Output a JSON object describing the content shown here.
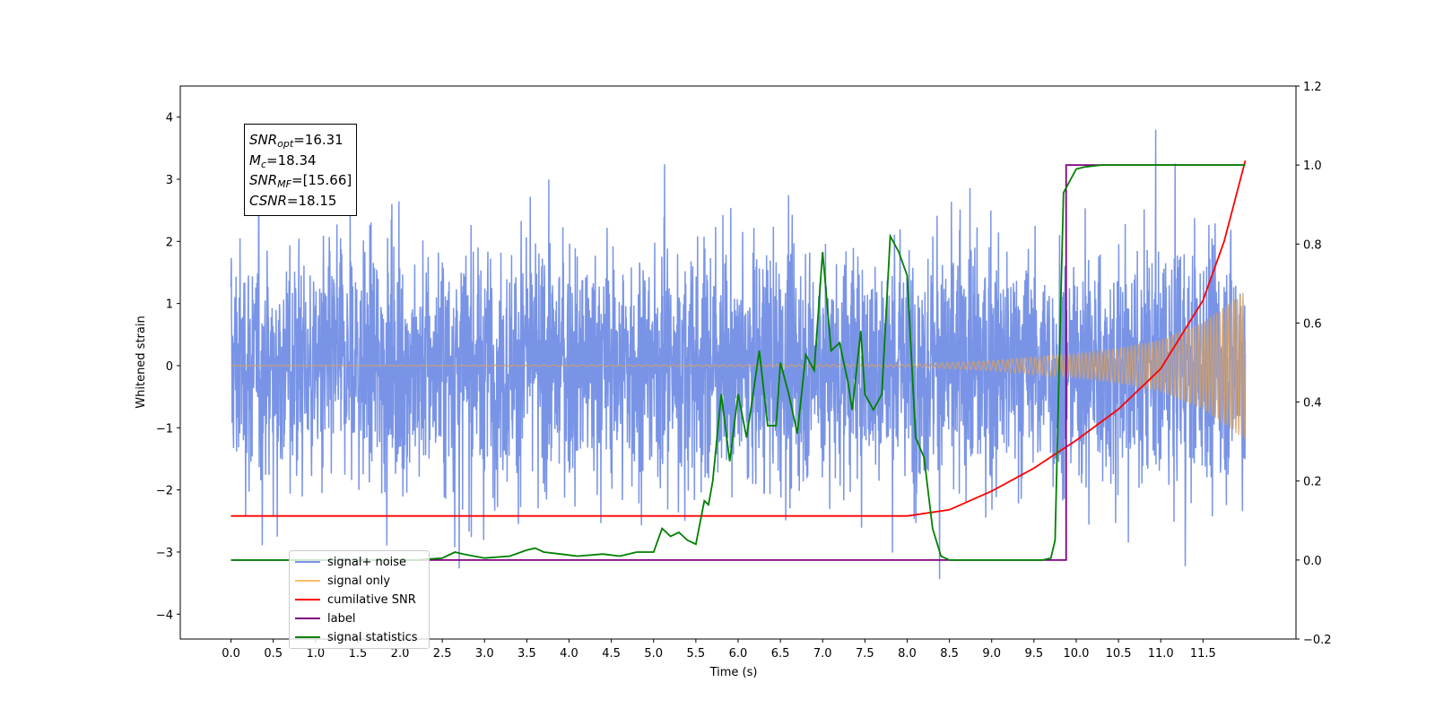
{
  "chart_data": {
    "type": "line",
    "xlabel": "Time (s)",
    "ylabel": "Whitened strain",
    "xlim": [
      -0.6,
      12.6
    ],
    "ylim": [
      -4.4,
      4.5
    ],
    "y2lim": [
      -0.2,
      1.2
    ],
    "x_ticks": [
      "0.0",
      "0.5",
      "1.0",
      "1.5",
      "2.0",
      "2.5",
      "3.0",
      "3.5",
      "4.0",
      "4.5",
      "5.0",
      "5.5",
      "6.0",
      "6.5",
      "7.0",
      "7.5",
      "8.0",
      "8.5",
      "9.0",
      "9.5",
      "10.0",
      "10.5",
      "11.0",
      "11.5"
    ],
    "y_ticks": [
      "4",
      "3",
      "2",
      "1",
      "0",
      "−1",
      "−2",
      "−3",
      "−4"
    ],
    "y2_ticks": [
      "1.2",
      "1.0",
      "0.8",
      "0.6",
      "0.4",
      "0.2",
      "0.0",
      "−0.2"
    ],
    "annotation": {
      "snr_opt": "16.31",
      "mc": "18.34",
      "snr_mf": "[15.66]",
      "csnr": "18.15"
    },
    "legend": {
      "placement": "lower-left",
      "entries": [
        {
          "label": "signal+ noise",
          "color": "#7994e6"
        },
        {
          "label": "signal only",
          "color": "#ffbf66"
        },
        {
          "label": "cumilative SNR",
          "color": "#ff0000"
        },
        {
          "label": "label",
          "color": "#800080"
        },
        {
          "label": "signal statistics",
          "color": "#008000"
        }
      ]
    },
    "series": [
      {
        "name": "signal+ noise",
        "axis": "left",
        "description_values": {
          "t_start": 0.0,
          "t_end": 12.0,
          "envelope_std": 1.0
        }
      },
      {
        "name": "signal only",
        "axis": "left",
        "envelope": {
          "t": [
            0.0,
            8.0,
            9.0,
            10.0,
            10.5,
            11.0,
            11.5,
            12.0
          ],
          "amplitude": [
            0.0,
            0.02,
            0.08,
            0.2,
            0.28,
            0.42,
            0.7,
            1.2
          ]
        }
      },
      {
        "name": "cumilative SNR",
        "axis": "left",
        "t": [
          0.0,
          8.0,
          8.5,
          9.0,
          9.5,
          10.0,
          10.5,
          11.0,
          11.5,
          11.75,
          12.0
        ],
        "values": [
          -2.42,
          -2.42,
          -2.32,
          -2.02,
          -1.65,
          -1.2,
          -0.7,
          -0.05,
          1.05,
          2.0,
          3.3
        ]
      },
      {
        "name": "label",
        "axis": "right",
        "t": [
          0.0,
          9.82,
          9.82,
          9.88,
          9.88,
          12.0
        ],
        "values": [
          0.0,
          0.0,
          0.0,
          0.0,
          1.0,
          1.0
        ]
      },
      {
        "name": "signal statistics",
        "axis": "right",
        "t": [
          0.0,
          2.2,
          2.5,
          2.65,
          2.75,
          3.0,
          3.3,
          3.5,
          3.6,
          3.7,
          3.9,
          4.1,
          4.4,
          4.6,
          4.8,
          5.0,
          5.1,
          5.2,
          5.3,
          5.4,
          5.5,
          5.6,
          5.65,
          5.7,
          5.8,
          5.9,
          6.0,
          6.1,
          6.15,
          6.25,
          6.35,
          6.45,
          6.5,
          6.6,
          6.7,
          6.8,
          6.9,
          7.0,
          7.1,
          7.2,
          7.3,
          7.35,
          7.45,
          7.5,
          7.6,
          7.7,
          7.8,
          7.9,
          8.0,
          8.1,
          8.2,
          8.3,
          8.4,
          8.5,
          9.0,
          9.6,
          9.7,
          9.75,
          9.8,
          9.85,
          9.9,
          10.0,
          10.1,
          10.3,
          10.5,
          10.7,
          11.0,
          11.5,
          12.0
        ],
        "values": [
          0.0,
          0.0,
          0.005,
          0.02,
          0.015,
          0.005,
          0.01,
          0.025,
          0.03,
          0.02,
          0.015,
          0.01,
          0.015,
          0.01,
          0.02,
          0.02,
          0.08,
          0.06,
          0.07,
          0.05,
          0.04,
          0.15,
          0.14,
          0.2,
          0.42,
          0.25,
          0.42,
          0.31,
          0.38,
          0.53,
          0.34,
          0.34,
          0.5,
          0.42,
          0.32,
          0.52,
          0.48,
          0.78,
          0.53,
          0.55,
          0.45,
          0.38,
          0.58,
          0.42,
          0.38,
          0.42,
          0.82,
          0.78,
          0.72,
          0.31,
          0.26,
          0.08,
          0.01,
          0.0,
          0.0,
          0.0,
          0.005,
          0.05,
          0.5,
          0.93,
          0.95,
          0.99,
          0.995,
          1.0,
          1.0,
          1.0,
          1.0,
          1.0,
          1.0
        ]
      }
    ]
  }
}
